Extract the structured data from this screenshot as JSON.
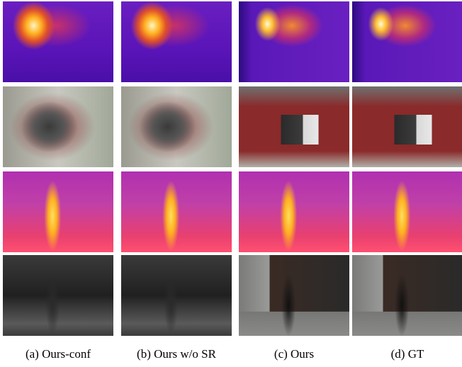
{
  "figure": {
    "captions": [
      "(a) Ours-conf",
      "(b) Ours w/o SR",
      "(c) Ours",
      "(d) GT"
    ]
  }
}
